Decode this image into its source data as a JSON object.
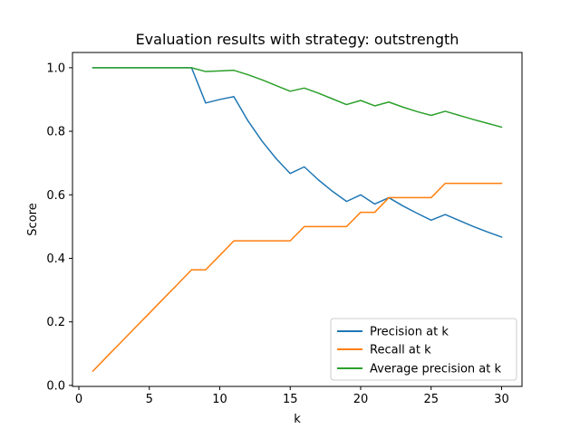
{
  "chart_data": {
    "type": "line",
    "title": "Evaluation results with strategy: outstrength",
    "xlabel": "k",
    "ylabel": "Score",
    "xlim": [
      -0.45,
      31.45
    ],
    "ylim": [
      -0.0032,
      1.048
    ],
    "xticks": [
      0,
      5,
      10,
      15,
      20,
      25,
      30
    ],
    "yticks": [
      0.0,
      0.2,
      0.4,
      0.6,
      0.8,
      1.0
    ],
    "xtick_labels": [
      "0",
      "5",
      "10",
      "15",
      "20",
      "25",
      "30"
    ],
    "ytick_labels": [
      "0.0",
      "0.2",
      "0.4",
      "0.6",
      "0.8",
      "1.0"
    ],
    "legend_position": "lower-right",
    "grid": false,
    "x": [
      1,
      2,
      3,
      4,
      5,
      6,
      7,
      8,
      9,
      10,
      11,
      12,
      13,
      14,
      15,
      16,
      17,
      18,
      19,
      20,
      21,
      22,
      23,
      24,
      25,
      26,
      27,
      28,
      29,
      30
    ],
    "series": [
      {
        "name": "Precision at k",
        "color": "#1f77b4",
        "values": [
          1.0,
          1.0,
          1.0,
          1.0,
          1.0,
          1.0,
          1.0,
          1.0,
          0.889,
          0.9,
          0.909,
          0.833,
          0.769,
          0.714,
          0.667,
          0.688,
          0.647,
          0.611,
          0.579,
          0.6,
          0.571,
          0.591,
          0.565,
          0.542,
          0.52,
          0.538,
          0.519,
          0.5,
          0.483,
          0.467
        ]
      },
      {
        "name": "Recall at k",
        "color": "#ff7f0e",
        "values": [
          0.045,
          0.091,
          0.136,
          0.182,
          0.227,
          0.273,
          0.318,
          0.364,
          0.364,
          0.409,
          0.455,
          0.455,
          0.455,
          0.455,
          0.455,
          0.5,
          0.5,
          0.5,
          0.5,
          0.545,
          0.545,
          0.591,
          0.591,
          0.591,
          0.591,
          0.636,
          0.636,
          0.636,
          0.636,
          0.636
        ]
      },
      {
        "name": "Average precision at k",
        "color": "#2ca02c",
        "values": [
          1.0,
          1.0,
          1.0,
          1.0,
          1.0,
          1.0,
          1.0,
          1.0,
          0.988,
          0.99,
          0.992,
          0.978,
          0.962,
          0.944,
          0.926,
          0.936,
          0.92,
          0.902,
          0.884,
          0.897,
          0.88,
          0.892,
          0.876,
          0.862,
          0.85,
          0.863,
          0.85,
          0.837,
          0.825,
          0.813
        ]
      }
    ]
  }
}
